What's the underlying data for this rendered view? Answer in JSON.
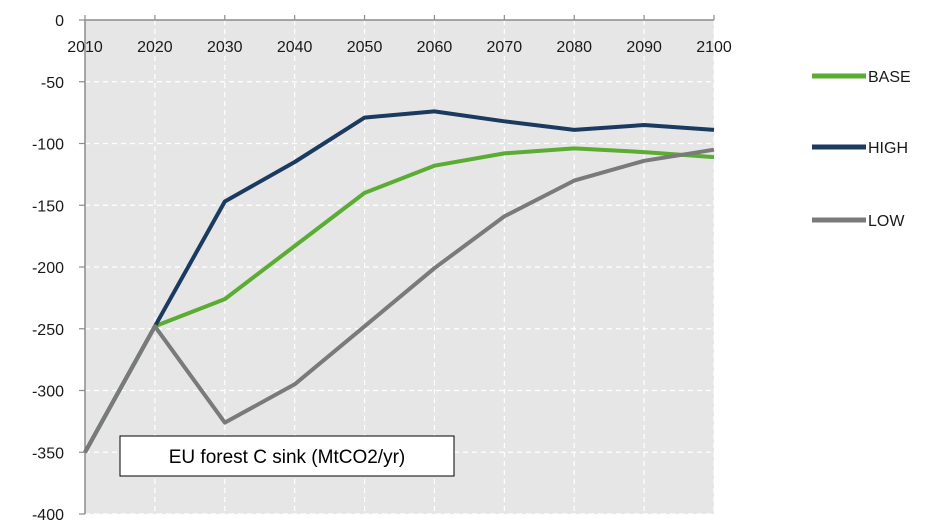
{
  "chart_data": {
    "type": "line",
    "title": "",
    "xlabel": "",
    "ylabel": "",
    "x": [
      2010,
      2020,
      2030,
      2040,
      2050,
      2060,
      2070,
      2080,
      2090,
      2100
    ],
    "x_tick_labels": [
      "2010",
      "2020",
      "2030",
      "2040",
      "2050",
      "2060",
      "2070",
      "2080",
      "2090",
      "2100"
    ],
    "y_tick_labels": [
      "0",
      "-50",
      "-100",
      "-150",
      "-200",
      "-250",
      "-300",
      "-350",
      "-400"
    ],
    "xlim": [
      2010,
      2100
    ],
    "ylim": [
      -400,
      0
    ],
    "y_ticks": [
      0,
      -50,
      -100,
      -150,
      -200,
      -250,
      -300,
      -350,
      -400
    ],
    "grid": true,
    "x_axis_position": "top",
    "legend_position": "right",
    "series": [
      {
        "name": "BASE",
        "color": "#5aac32",
        "values": [
          -350,
          -248,
          -226,
          -183,
          -140,
          -118,
          -108,
          -104,
          -107,
          -111
        ]
      },
      {
        "name": "HIGH",
        "color": "#1b3a60",
        "values": [
          -350,
          -248,
          -147,
          -115,
          -79,
          -74,
          -82,
          -89,
          -85,
          -89
        ]
      },
      {
        "name": "LOW",
        "color": "#7a7a7a",
        "values": [
          -350,
          -248,
          -326,
          -295,
          -248,
          -201,
          -159,
          -130,
          -114,
          -105
        ]
      }
    ],
    "annotation": "EU forest C sink (MtCO2/yr)"
  }
}
